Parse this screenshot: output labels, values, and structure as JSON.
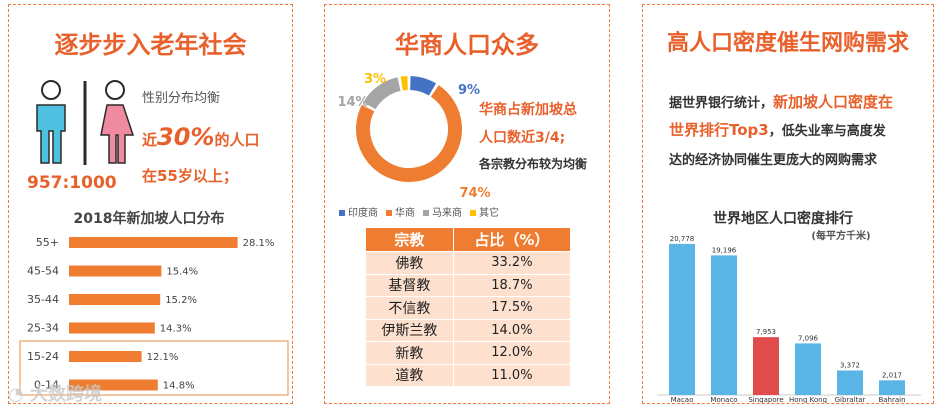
{
  "panels": {
    "left": {
      "title": "逐步步入老年社会",
      "gender_label": "性别分布均衡",
      "ratio": "957:1000",
      "age_line1_pre": "近",
      "age_line1_pct": "30%",
      "age_line1_post": "的人口",
      "age_line2": "在55岁以上；"
    },
    "middle": {
      "title": "华商人口众多",
      "text_line1": "华商占新加坡总",
      "text_line2": "人口数近3/4;",
      "text_line3": "各宗教分布较为均衡",
      "table": {
        "headers": [
          "宗教",
          "占比（%）"
        ],
        "rows": [
          [
            "佛教",
            "33.2%"
          ],
          [
            "基督教",
            "18.7%"
          ],
          [
            "不信教",
            "17.5%"
          ],
          [
            "伊斯兰教",
            "14.0%"
          ],
          [
            "新教",
            "12.0%"
          ],
          [
            "道教",
            "11.0%"
          ]
        ]
      }
    },
    "right": {
      "title": "高人口密度催生网购需求",
      "para_line1_pre": "据世界银行统计，",
      "para_line1_hl": "新加坡人口密度在",
      "para_line2_hl": "世界排行Top3",
      "para_line2_post": "，低失业率与高度发",
      "para_line3": "达的经济协同催生更庞大的网购需求"
    }
  },
  "watermark": "大数跨境",
  "colors": {
    "accent": "#e8612c",
    "bar_orange": "#ef7d31",
    "blue": "#4472c4",
    "gray": "#a5a5a5",
    "yellow": "#ffc000",
    "sky": "#5ab4e5",
    "red": "#e04b4b"
  },
  "chart_data": [
    {
      "type": "bar",
      "orientation": "horizontal",
      "title": "2018年新加坡人口分布",
      "categories": [
        "55+",
        "45-54",
        "35-44",
        "25-34",
        "15-24",
        "0-14"
      ],
      "values": [
        28.1,
        15.4,
        15.2,
        14.3,
        12.1,
        14.8
      ],
      "labels": [
        "28.1%",
        "15.4%",
        "15.2%",
        "14.3%",
        "12.1%",
        "14.8%"
      ],
      "xlim": [
        0,
        30
      ],
      "highlighted": [
        "15-24",
        "0-14"
      ]
    },
    {
      "type": "pie",
      "style": "donut",
      "title": "",
      "categories": [
        "印度商",
        "华商",
        "马来商",
        "其它"
      ],
      "values": [
        9,
        74,
        14,
        3
      ],
      "labels": [
        "9%",
        "74%",
        "14%",
        "3%"
      ],
      "legend": "bottom"
    },
    {
      "type": "bar",
      "title": "世界地区人口密度排行",
      "subtitle": "(每平方千米)",
      "categories": [
        "Macao",
        "Monaco",
        "Singapore",
        "Hong Kong",
        "Gibraltar",
        "Bahrain"
      ],
      "values": [
        20778,
        19196,
        7953,
        7096,
        3372,
        2017
      ],
      "labels": [
        "20,778",
        "19,196",
        "7,953",
        "7,096",
        "3,372",
        "2,017"
      ],
      "ylim": [
        0,
        22000
      ],
      "highlighted": [
        "Singapore"
      ]
    }
  ]
}
